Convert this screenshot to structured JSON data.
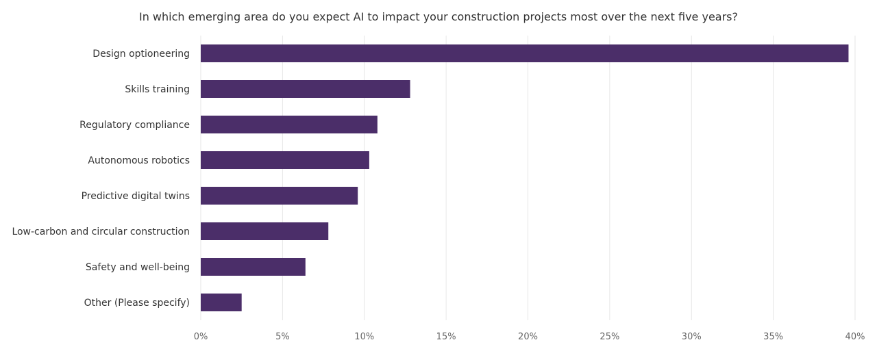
{
  "chart_data": {
    "type": "bar",
    "orientation": "horizontal",
    "title": "In which emerging area do you expect AI to impact your construction projects most over the next five years?",
    "xlabel": "",
    "ylabel": "",
    "categories": [
      "Design optioneering",
      "Skills training",
      "Regulatory compliance",
      "Autonomous robotics",
      "Predictive digital twins",
      "Low-carbon and circular construction",
      "Safety and well-being",
      "Other (Please specify)"
    ],
    "values": [
      39.6,
      12.8,
      10.8,
      10.3,
      9.6,
      7.8,
      6.4,
      2.5
    ],
    "xlim": [
      0,
      40
    ],
    "xticks": [
      0,
      5,
      10,
      15,
      20,
      25,
      30,
      35,
      40
    ],
    "xtick_labels": [
      "0%",
      "5%",
      "10%",
      "15%",
      "20%",
      "25%",
      "30%",
      "35%",
      "40%"
    ],
    "grid": "vertical",
    "legend": "none",
    "colors": {
      "bar": "#4b2e69",
      "grid": "#e6e6e6",
      "text": "#333333",
      "tick": "#666666"
    }
  }
}
